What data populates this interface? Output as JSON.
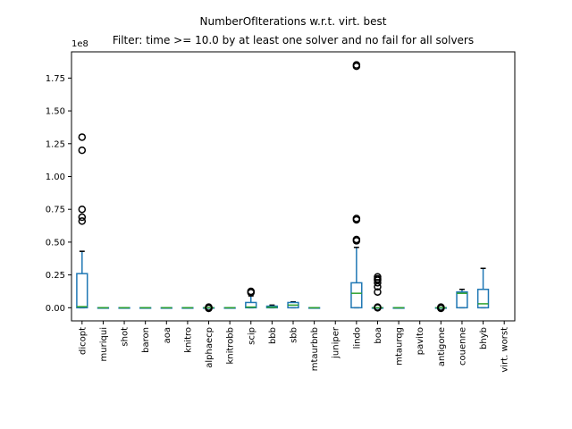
{
  "chart_data": {
    "type": "box",
    "title": "NumberOfIterations w.r.t. virt. best",
    "subtitle": "Filter: time >= 10.0 by at least one solver and no fail for all solvers",
    "y_offset_label": "1e8",
    "ylim": [
      -0.1,
      1.95
    ],
    "y_scale": "1e8",
    "yticks": [
      0.0,
      0.25,
      0.5,
      0.75,
      1.0,
      1.25,
      1.5,
      1.75
    ],
    "ytick_labels": [
      "0.00",
      "0.25",
      "0.50",
      "0.75",
      "1.00",
      "1.25",
      "1.50",
      "1.75"
    ],
    "grid": false,
    "colors": {
      "box": "#1f77b4",
      "median": "#2ca02c",
      "flier": "#000000",
      "axes": "#000000"
    },
    "categories": [
      "dicopt",
      "muriqui",
      "shot",
      "baron",
      "aoa",
      "knitro",
      "alphaecp",
      "knitrobb",
      "scip",
      "bbb",
      "sbb",
      "mtaurbnb",
      "juniper",
      "lindo",
      "boa",
      "mtaurqg",
      "pavito",
      "antigone",
      "couenne",
      "bhyb",
      "virt. worst"
    ],
    "boxes": [
      {
        "q1": 0.0,
        "median": 0.008,
        "q3": 0.26,
        "whislo": 0.0,
        "whishi": 0.43,
        "fliers": [
          0.66,
          0.69,
          0.75,
          1.2,
          1.3
        ]
      },
      {
        "q1": 0.0,
        "median": 0.0,
        "q3": 0.0,
        "whislo": 0.0,
        "whishi": 0.0,
        "fliers": []
      },
      {
        "q1": 0.0,
        "median": 0.0,
        "q3": 0.0,
        "whislo": 0.0,
        "whishi": 0.0,
        "fliers": []
      },
      {
        "q1": 0.0,
        "median": 0.0,
        "q3": 0.0,
        "whislo": 0.0,
        "whishi": 0.0,
        "fliers": []
      },
      {
        "q1": 0.0,
        "median": 0.0,
        "q3": 0.0,
        "whislo": 0.0,
        "whishi": 0.0,
        "fliers": []
      },
      {
        "q1": 0.0,
        "median": 0.0,
        "q3": 0.0,
        "whislo": 0.0,
        "whishi": 0.0,
        "fliers": []
      },
      {
        "q1": 0.0,
        "median": 0.0,
        "q3": 0.0,
        "whislo": 0.0,
        "whishi": 0.0,
        "fliers": [
          -0.005,
          0.0,
          0.005
        ]
      },
      {
        "q1": 0.0,
        "median": 0.0,
        "q3": 0.0,
        "whislo": 0.0,
        "whishi": 0.0,
        "fliers": []
      },
      {
        "q1": 0.0,
        "median": 0.005,
        "q3": 0.04,
        "whislo": 0.0,
        "whishi": 0.09,
        "fliers": [
          0.115,
          0.125
        ]
      },
      {
        "q1": 0.0,
        "median": 0.004,
        "q3": 0.012,
        "whislo": 0.0,
        "whishi": 0.02,
        "fliers": []
      },
      {
        "q1": 0.0,
        "median": 0.02,
        "q3": 0.04,
        "whislo": 0.0,
        "whishi": 0.045,
        "fliers": []
      },
      {
        "q1": 0.0,
        "median": 0.0,
        "q3": 0.0,
        "whislo": 0.0,
        "whishi": 0.0,
        "fliers": []
      },
      {
        "q1": null,
        "median": null,
        "q3": null,
        "whislo": null,
        "whishi": null,
        "fliers": []
      },
      {
        "q1": 0.0,
        "median": 0.11,
        "q3": 0.19,
        "whislo": 0.0,
        "whishi": 0.46,
        "fliers": [
          0.51,
          0.52,
          0.67,
          0.68,
          1.84,
          1.85
        ]
      },
      {
        "q1": 0.0,
        "median": 0.0,
        "q3": 0.0,
        "whislo": 0.0,
        "whishi": 0.0,
        "fliers": [
          0.0,
          0.005,
          0.12,
          0.16,
          0.19,
          0.21,
          0.22,
          0.235
        ]
      },
      {
        "q1": 0.0,
        "median": 0.0,
        "q3": 0.0,
        "whislo": 0.0,
        "whishi": 0.0,
        "fliers": []
      },
      {
        "q1": null,
        "median": null,
        "q3": null,
        "whislo": null,
        "whishi": null,
        "fliers": []
      },
      {
        "q1": 0.0,
        "median": 0.0,
        "q3": 0.0,
        "whislo": 0.0,
        "whishi": 0.0,
        "fliers": [
          -0.005,
          0.0,
          0.005
        ]
      },
      {
        "q1": 0.0,
        "median": 0.11,
        "q3": 0.12,
        "whislo": 0.0,
        "whishi": 0.14,
        "fliers": []
      },
      {
        "q1": 0.0,
        "median": 0.03,
        "q3": 0.14,
        "whislo": 0.0,
        "whishi": 0.3,
        "fliers": []
      },
      {
        "q1": null,
        "median": null,
        "q3": null,
        "whislo": null,
        "whishi": null,
        "fliers": []
      }
    ]
  }
}
